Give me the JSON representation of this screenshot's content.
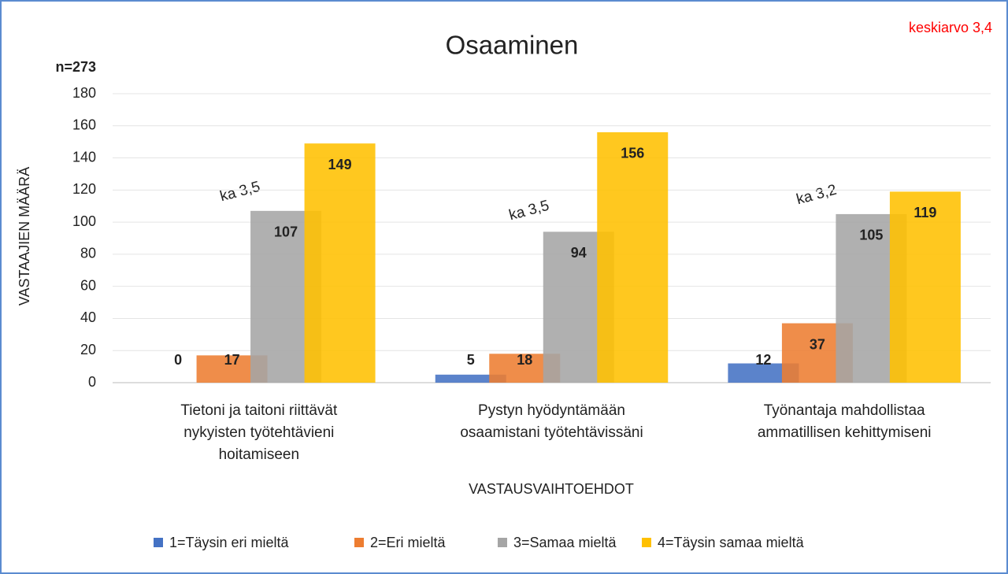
{
  "chart_data": {
    "type": "bar",
    "title": "Osaaminen",
    "subtitle": "n=273",
    "corner_note": "keskiarvo 3,4",
    "x_label": "VASTAUSVAIHTOEHDOT",
    "y_label": "VASTAAJIEN MÄÄRÄ",
    "categories": [
      "Tietoni ja taitoni riittävät nykyisten työtehtävieni hoitamiseen",
      "Pystyn hyödyntämään osaamistani työtehtävissäni",
      "Työnantaja mahdollistaa ammatillisen kehittymiseni"
    ],
    "annotations": [
      "ka 3,5",
      "ka 3,5",
      "ka 3,2"
    ],
    "series": [
      {
        "name": "1=Täysin eri mieltä",
        "color": "#4472c4",
        "values": [
          0,
          5,
          12
        ]
      },
      {
        "name": "2=Eri mieltä",
        "color": "#ed7d31",
        "values": [
          17,
          18,
          37
        ]
      },
      {
        "name": "3=Samaa mieltä",
        "color": "#a5a5a5",
        "values": [
          107,
          94,
          105
        ]
      },
      {
        "name": "4=Täysin samaa mieltä",
        "color": "#ffc000",
        "values": [
          149,
          156,
          119
        ]
      }
    ],
    "ylim": [
      0,
      180
    ],
    "yticks": [
      0,
      20,
      40,
      60,
      80,
      100,
      120,
      140,
      160,
      180
    ],
    "grid": true,
    "legend": "bottom"
  }
}
